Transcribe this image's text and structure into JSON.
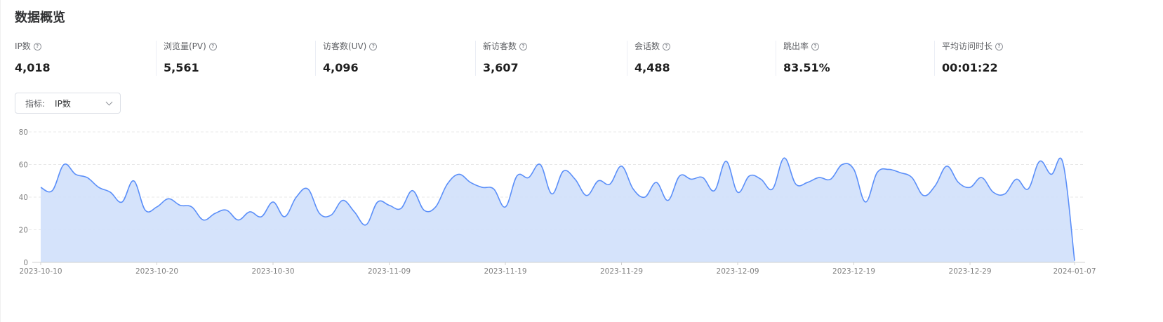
{
  "page": {
    "title": "数据概览"
  },
  "metrics": [
    {
      "label": "IP数",
      "value": "4,018"
    },
    {
      "label": "浏览量(PV)",
      "value": "5,561"
    },
    {
      "label": "访客数(UV)",
      "value": "4,096"
    },
    {
      "label": "新访客数",
      "value": "3,607"
    },
    {
      "label": "会话数",
      "value": "4,488"
    },
    {
      "label": "跳出率",
      "value": "83.51%"
    },
    {
      "label": "平均访问时长",
      "value": "00:01:22"
    }
  ],
  "selector": {
    "label": "指标:",
    "value": "IP数"
  },
  "icons": {
    "help": "question-circle-icon",
    "dropdown": "chevron-down-icon"
  },
  "colors": {
    "line": "#5b8ff9",
    "area": "#d3e1fb",
    "grid": "#e8e8e8"
  },
  "chart_data": {
    "type": "area",
    "title": "",
    "xlabel": "",
    "ylabel": "",
    "ylim": [
      0,
      80
    ],
    "yticks": [
      "0",
      "20",
      "40",
      "60",
      "80"
    ],
    "xtick_labels": [
      "2023-10-10",
      "2023-10-20",
      "2023-10-30",
      "2023-11-09",
      "2023-11-19",
      "2023-11-29",
      "2023-12-09",
      "2023-12-19",
      "2023-12-29",
      "2024-01-07"
    ],
    "grid": true,
    "legend": "none",
    "x_start": "2023-10-10",
    "x_end": "2024-01-07",
    "series": [
      {
        "name": "IP数",
        "values": [
          46,
          44,
          60,
          54,
          52,
          46,
          43,
          37,
          50,
          32,
          34,
          39,
          35,
          34,
          26,
          30,
          32,
          26,
          31,
          28,
          37,
          28,
          40,
          45,
          30,
          29,
          38,
          31,
          23,
          37,
          35,
          33,
          44,
          32,
          34,
          48,
          54,
          49,
          46,
          45,
          34,
          53,
          52,
          60,
          42,
          56,
          51,
          41,
          50,
          48,
          59,
          45,
          40,
          49,
          38,
          53,
          51,
          52,
          44,
          62,
          43,
          53,
          51,
          45,
          64,
          48,
          49,
          52,
          51,
          60,
          57,
          37,
          55,
          57,
          55,
          52,
          41,
          47,
          59,
          49,
          46,
          52,
          43,
          42,
          51,
          45,
          62,
          54,
          61,
          1
        ]
      }
    ]
  }
}
